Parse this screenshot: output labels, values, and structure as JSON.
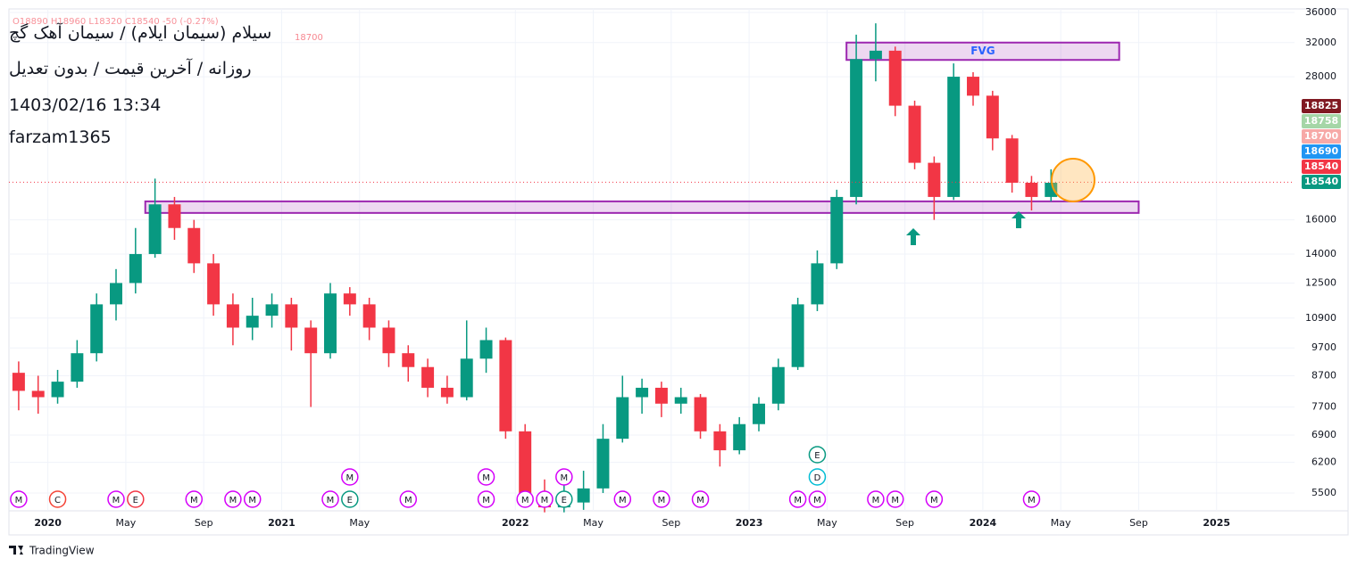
{
  "chart_data": {
    "type": "candlestick",
    "title": "سیلام (سیمان ایلام) / سیمان آهک گچ",
    "subtitle": "روزانه / آخرین قیمت / بدون تعدیل",
    "timestamp": "1403/02/16 13:34",
    "author": "farzam1365",
    "ohlc_legend": "O18890 H18960 L18320 C18540 -50 (-0.27%)",
    "legend_price": "18700",
    "brand": "TradingView",
    "log_scale": true,
    "grid": true,
    "up_color": "#089981",
    "down_color": "#f23645",
    "x": [
      "2019-11",
      "2019-12",
      "2020-01",
      "2020-02",
      "2020-03",
      "2020-04",
      "2020-05",
      "2020-06",
      "2020-07",
      "2020-08",
      "2020-09",
      "2020-10",
      "2020-11",
      "2020-12",
      "2021-01",
      "2021-02",
      "2021-03",
      "2021-04",
      "2021-05",
      "2021-06",
      "2021-07",
      "2021-08",
      "2021-09",
      "2021-10",
      "2021-11",
      "2021-12",
      "2022-01",
      "2022-02",
      "2022-03",
      "2022-04",
      "2022-05",
      "2022-06",
      "2022-07",
      "2022-08",
      "2022-09",
      "2022-10",
      "2022-11",
      "2022-12",
      "2023-01",
      "2023-02",
      "2023-03",
      "2023-04",
      "2023-05",
      "2023-06",
      "2023-07",
      "2023-08",
      "2023-09",
      "2023-10",
      "2023-11",
      "2023-12",
      "2024-01",
      "2024-02",
      "2024-03",
      "2024-04"
    ],
    "open": [
      8800,
      8200,
      8000,
      8500,
      9500,
      11500,
      12500,
      14000,
      17000,
      15500,
      13500,
      11500,
      10500,
      11000,
      11500,
      10500,
      9500,
      12000,
      11500,
      10500,
      9500,
      9000,
      8300,
      8000,
      9300,
      10000,
      7000,
      5400,
      5200,
      5300,
      5600,
      6800,
      8000,
      8300,
      7800,
      8000,
      7000,
      6500,
      7200,
      7800,
      9000,
      11500,
      13500,
      17500,
      30000,
      31000,
      25000,
      20000,
      17500,
      28000,
      26000,
      22000,
      18500,
      17500
    ],
    "high": [
      9200,
      8700,
      8900,
      10000,
      12000,
      13200,
      15500,
      18800,
      17500,
      16000,
      14000,
      12000,
      11800,
      12000,
      11800,
      10800,
      12500,
      12300,
      11800,
      10800,
      9800,
      9300,
      8700,
      10800,
      10500,
      10100,
      7200,
      5800,
      5700,
      6000,
      7200,
      8700,
      8600,
      8500,
      8300,
      8100,
      7200,
      7400,
      8000,
      9300,
      11800,
      14200,
      18000,
      33000,
      34500,
      31500,
      25500,
      20500,
      29500,
      28500,
      26500,
      22300,
      19000,
      19500
    ],
    "low": [
      7600,
      7500,
      7800,
      8300,
      9200,
      10800,
      12000,
      13800,
      14800,
      13000,
      11000,
      9800,
      10000,
      10500,
      9600,
      7700,
      9300,
      11000,
      10000,
      9000,
      8500,
      8000,
      7800,
      7900,
      8800,
      6800,
      5300,
      5100,
      5100,
      5150,
      5500,
      6700,
      7500,
      7400,
      7500,
      6800,
      6100,
      6400,
      7000,
      7600,
      8900,
      11200,
      13200,
      17000,
      27500,
      24000,
      19500,
      16000,
      17300,
      25000,
      21000,
      17800,
      16600,
      17200
    ],
    "close": [
      8200,
      8000,
      8500,
      9500,
      11500,
      12500,
      14000,
      17000,
      15500,
      13500,
      11500,
      10500,
      11000,
      11500,
      10500,
      9500,
      12000,
      11500,
      10500,
      9500,
      9000,
      8300,
      8000,
      9300,
      10000,
      7000,
      5400,
      5200,
      5300,
      5600,
      6800,
      8000,
      8300,
      7800,
      8000,
      7000,
      6500,
      7200,
      7800,
      9000,
      11500,
      13500,
      17500,
      30000,
      31000,
      25000,
      20000,
      17500,
      28000,
      26000,
      22000,
      18500,
      17500,
      18500
    ],
    "xlim": [
      "2019-11",
      "2025-05"
    ],
    "ylim": [
      5130,
      36500
    ],
    "yticks": [
      5500,
      6200,
      6900,
      7700,
      8700,
      9700,
      10900,
      12500,
      14000,
      16000,
      28000,
      32000,
      36000
    ],
    "xticks": [
      {
        "value": "2020-01",
        "label": "2020"
      },
      {
        "value": "2020-05",
        "label": "May"
      },
      {
        "value": "2020-09",
        "label": "Sep"
      },
      {
        "value": "2021-01",
        "label": "2021"
      },
      {
        "value": "2021-05",
        "label": "May"
      },
      {
        "value": "2022-01",
        "label": "2022"
      },
      {
        "value": "2022-05",
        "label": "May"
      },
      {
        "value": "2022-09",
        "label": "Sep"
      },
      {
        "value": "2023-01",
        "label": "2023"
      },
      {
        "value": "2023-05",
        "label": "May"
      },
      {
        "value": "2023-09",
        "label": "Sep"
      },
      {
        "value": "2024-01",
        "label": "2024"
      },
      {
        "value": "2024-05",
        "label": "May"
      },
      {
        "value": "2024-09",
        "label": "Sep"
      },
      {
        "value": "2025-01",
        "label": "2025"
      }
    ],
    "last_price": 18540,
    "price_labels": [
      {
        "value": 18825,
        "color": "#801922"
      },
      {
        "value": 18758,
        "color": "#a5d6a7"
      },
      {
        "value": 18700,
        "color": "#f7a9a7"
      },
      {
        "value": 18690,
        "color": "#2196f3"
      },
      {
        "value": 18540,
        "color": "#f23645"
      },
      {
        "value": 18540,
        "color": "#089981"
      }
    ],
    "zones": [
      {
        "label": "FVG",
        "from": "2023-06",
        "to": "2024-08",
        "top": 32000,
        "bottom": 29900,
        "color": "#9c27b0"
      },
      {
        "from": "2020-06",
        "to": "2024-09",
        "top": 17200,
        "bottom": 16440,
        "color": "#9c27b0"
      }
    ],
    "events": [
      {
        "x": "2019-11",
        "label": "M",
        "color": "#d500f9"
      },
      {
        "x": "2020-01",
        "label": "C",
        "color": "#f44336"
      },
      {
        "x": "2020-04",
        "label": "M",
        "color": "#d500f9"
      },
      {
        "x": "2020-05",
        "label": "E",
        "color": "#f23645"
      },
      {
        "x": "2020-08",
        "label": "M",
        "color": "#d500f9"
      },
      {
        "x": "2020-10",
        "label": "M",
        "color": "#d500f9"
      },
      {
        "x": "2020-11",
        "label": "M",
        "color": "#d500f9"
      },
      {
        "x": "2021-03",
        "label": "M",
        "color": "#d500f9"
      },
      {
        "x": "2021-04",
        "label": "E",
        "color": "#089981"
      },
      {
        "x": "2021-04",
        "label": "M",
        "color": "#d500f9"
      },
      {
        "x": "2021-07",
        "label": "M",
        "color": "#d500f9"
      },
      {
        "x": "2021-11",
        "label": "M",
        "color": "#d500f9"
      },
      {
        "x": "2021-11",
        "label": "M",
        "color": "#d500f9"
      },
      {
        "x": "2022-01",
        "label": "M",
        "color": "#d500f9"
      },
      {
        "x": "2022-02",
        "label": "M",
        "color": "#d500f9"
      },
      {
        "x": "2022-03",
        "label": "E",
        "color": "#089981"
      },
      {
        "x": "2022-03",
        "label": "M",
        "color": "#d500f9"
      },
      {
        "x": "2022-06",
        "label": "M",
        "color": "#d500f9"
      },
      {
        "x": "2022-08",
        "label": "M",
        "color": "#d500f9"
      },
      {
        "x": "2022-10",
        "label": "M",
        "color": "#d500f9"
      },
      {
        "x": "2023-03",
        "label": "M",
        "color": "#d500f9"
      },
      {
        "x": "2023-04",
        "label": "M",
        "color": "#d500f9"
      },
      {
        "x": "2023-04",
        "label": "D",
        "color": "#00bcd4"
      },
      {
        "x": "2023-04",
        "label": "E",
        "color": "#089981"
      },
      {
        "x": "2023-07",
        "label": "M",
        "color": "#d500f9"
      },
      {
        "x": "2023-08",
        "label": "M",
        "color": "#d500f9"
      },
      {
        "x": "2023-10",
        "label": "M",
        "color": "#d500f9"
      },
      {
        "x": "2024-03",
        "label": "M",
        "color": "#d500f9"
      }
    ]
  }
}
